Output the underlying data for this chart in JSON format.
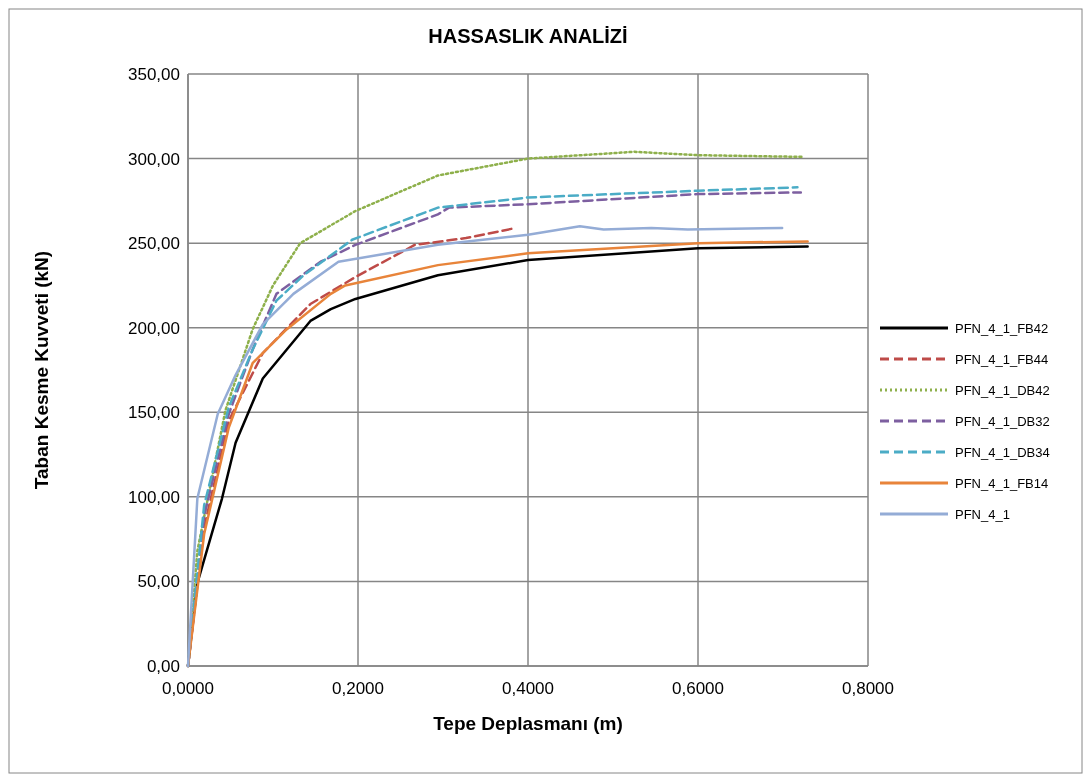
{
  "chart_data": {
    "type": "line",
    "title": "HASSASLIK ANALİZİ",
    "xlabel": "Tepe Deplasmanı (m)",
    "ylabel": "Taban Kesme Kuvveti (kN)",
    "xlim": [
      0,
      0.8
    ],
    "ylim": [
      0,
      350
    ],
    "xticks": [
      {
        "value": 0,
        "label": "0,0000"
      },
      {
        "value": 0.2,
        "label": "0,2000"
      },
      {
        "value": 0.4,
        "label": "0,4000"
      },
      {
        "value": 0.6,
        "label": "0,6000"
      },
      {
        "value": 0.8,
        "label": "0,8000"
      }
    ],
    "yticks": [
      {
        "value": 0,
        "label": "0,00"
      },
      {
        "value": 50,
        "label": "50,00"
      },
      {
        "value": 100,
        "label": "100,00"
      },
      {
        "value": 150,
        "label": "150,00"
      },
      {
        "value": 200,
        "label": "200,00"
      },
      {
        "value": 250,
        "label": "250,00"
      },
      {
        "value": 300,
        "label": "300,00"
      },
      {
        "value": 350,
        "label": "350,00"
      }
    ],
    "grid": true,
    "legend": "right",
    "marker": "none",
    "series": [
      {
        "name": "PFN_4_1_FB42",
        "color": "#000000",
        "line_style": "solid",
        "x": [
          0,
          0.011,
          0.04,
          0.056,
          0.088,
          0.144,
          0.168,
          0.197,
          0.294,
          0.4,
          0.6,
          0.729
        ],
        "values": [
          0,
          49,
          99,
          132,
          170,
          204,
          211,
          217,
          231,
          240,
          247,
          248
        ]
      },
      {
        "name": "PFN_4_1_FB44",
        "color": "#be4b48",
        "line_style": "dashed",
        "x": [
          0,
          0.019,
          0.048,
          0.088,
          0.144,
          0.197,
          0.267,
          0.327,
          0.386
        ],
        "values": [
          0,
          82,
          145,
          185,
          214,
          230,
          249,
          253,
          259
        ]
      },
      {
        "name": "PFN_4_1_DB42",
        "color": "#8eb04b",
        "line_style": "dotted",
        "x": [
          0,
          0.011,
          0.044,
          0.076,
          0.1,
          0.132,
          0.156,
          0.197,
          0.294,
          0.4,
          0.525,
          0.6,
          0.723
        ],
        "values": [
          0,
          68,
          151,
          199,
          225,
          250,
          257,
          269,
          290,
          300,
          304,
          302,
          301
        ]
      },
      {
        "name": "PFN_4_1_DB32",
        "color": "#7d5fa0",
        "line_style": "dashed",
        "x": [
          0,
          0.019,
          0.048,
          0.076,
          0.104,
          0.156,
          0.197,
          0.294,
          0.307,
          0.4,
          0.6,
          0.721
        ],
        "values": [
          0,
          89,
          149,
          187,
          220,
          239,
          249,
          267,
          271,
          273,
          279,
          280
        ]
      },
      {
        "name": "PFN_4_1_DB34",
        "color": "#4bacc6",
        "line_style": "dashed",
        "x": [
          0,
          0.019,
          0.048,
          0.076,
          0.104,
          0.136,
          0.193,
          0.294,
          0.4,
          0.6,
          0.717
        ],
        "values": [
          0,
          95,
          153,
          187,
          216,
          231,
          252,
          271,
          277,
          281,
          283
        ]
      },
      {
        "name": "PFN_4_1_FB14",
        "color": "#e8843a",
        "line_style": "solid",
        "x": [
          0,
          0.019,
          0.048,
          0.076,
          0.116,
          0.168,
          0.185,
          0.294,
          0.4,
          0.6,
          0.729
        ],
        "values": [
          0,
          78,
          141,
          179,
          199,
          220,
          225,
          237,
          244,
          250,
          251
        ]
      },
      {
        "name": "PFN_4_1",
        "color": "#94acd6",
        "line_style": "solid",
        "x": [
          0,
          0.011,
          0.035,
          0.056,
          0.088,
          0.124,
          0.177,
          0.294,
          0.4,
          0.461,
          0.489,
          0.545,
          0.588,
          0.699
        ],
        "values": [
          0,
          99,
          149,
          172,
          202,
          220,
          239,
          249,
          255,
          260,
          258,
          259,
          258,
          259
        ]
      }
    ]
  }
}
